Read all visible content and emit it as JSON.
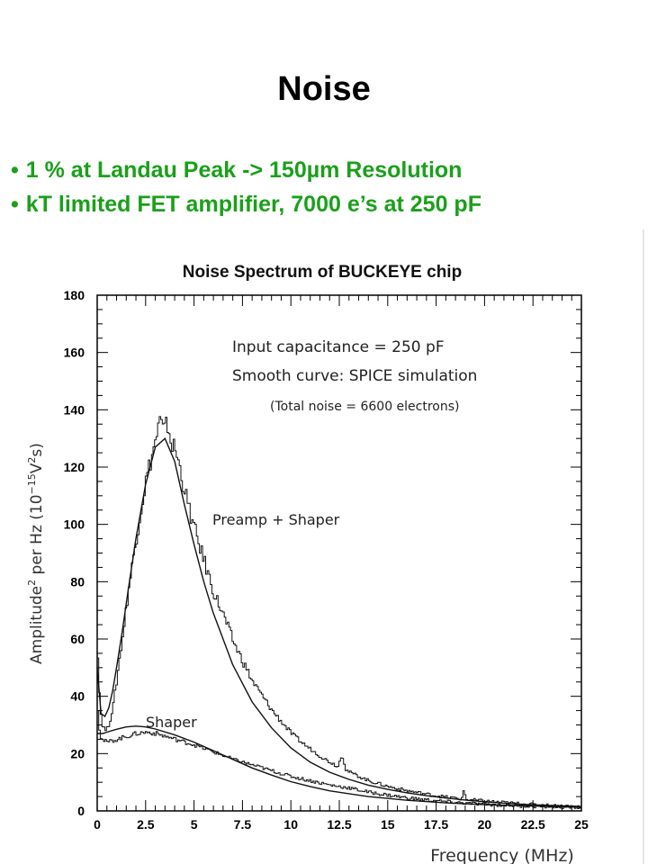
{
  "slide": {
    "title": "Noise",
    "bullets": [
      "1 % at Landau Peak -> 150µm  Resolution",
      "kT limited FET amplifier, 7000 e’s at 250 pF"
    ],
    "bullet_color": "#1aa01a"
  },
  "chart_data": {
    "type": "line",
    "title": "Noise Spectrum of BUCKEYE chip",
    "xlabel": "Frequency (MHz)",
    "ylabel_parts": [
      "Amplitude",
      "2",
      " per Hz  (10",
      "−15",
      "V",
      "2",
      "s)"
    ],
    "xlim": [
      0,
      25
    ],
    "ylim": [
      0,
      180
    ],
    "xticks": [
      0,
      2.5,
      5,
      7.5,
      10,
      12.5,
      15,
      17.5,
      20,
      22.5,
      25
    ],
    "xtick_labels": [
      "0",
      "2.5",
      "5",
      "7.5",
      "10",
      "12.5",
      "15",
      "17.5",
      "20",
      "22.5",
      "25"
    ],
    "yticks": [
      0,
      20,
      40,
      60,
      80,
      100,
      120,
      140,
      160,
      180
    ],
    "ytick_labels": [
      "0",
      "20",
      "40",
      "60",
      "80",
      "100",
      "120",
      "140",
      "160",
      "180"
    ],
    "annotations": [
      "Input capacitance = 250 pF",
      "Smooth curve: SPICE simulation",
      "(Total noise = 6600 electrons)",
      "Preamp + Shaper",
      "Shaper"
    ],
    "series": [
      {
        "name": "Preamp + Shaper",
        "kind": "smooth",
        "x": [
          0,
          0.2,
          0.4,
          0.6,
          0.8,
          1.0,
          1.3,
          1.6,
          2.0,
          2.5,
          3.0,
          3.5,
          4.0,
          4.5,
          5.0,
          5.5,
          6.0,
          7.0,
          8.0,
          9.0,
          10.0,
          11.0,
          12.0,
          13.0,
          14.0,
          15.0,
          16.0,
          17.0,
          18.0,
          19.0,
          20.0,
          21.0,
          22.0,
          23.0,
          24.0,
          25.0
        ],
        "y": [
          50,
          34,
          33,
          36,
          42,
          50,
          63,
          77,
          95,
          114,
          127,
          130,
          122,
          107,
          93,
          80,
          69,
          51,
          38,
          29,
          22,
          17,
          13.5,
          11,
          9,
          7.5,
          6.3,
          5.3,
          4.5,
          3.8,
          3.2,
          2.7,
          2.3,
          2.0,
          1.7,
          1.5
        ]
      },
      {
        "name": "Preamp + Shaper",
        "kind": "measured",
        "x": [
          0,
          0.1,
          0.2,
          0.3,
          0.45,
          0.6,
          0.8,
          1.0,
          1.3,
          1.6,
          2.0,
          2.5,
          3.0,
          3.2,
          3.4,
          3.6,
          3.8,
          4.0,
          4.3,
          4.6,
          5.0,
          5.5,
          6.0,
          6.5,
          7.0,
          7.5,
          8.0,
          8.5,
          9.0,
          9.5,
          10.0,
          10.5,
          11.0,
          11.5,
          12.0,
          12.4,
          12.6,
          12.8,
          13.0,
          13.5,
          14.0,
          15.0,
          16.0,
          17.0,
          18.0,
          18.8,
          18.9,
          19.0,
          20.0,
          21.0,
          22.0,
          23.0,
          24.0,
          25.0
        ],
        "y": [
          55,
          38,
          31,
          29,
          28,
          31,
          37,
          47,
          62,
          78,
          96,
          116,
          130,
          136,
          132,
          135,
          128,
          126,
          118,
          108,
          98,
          87,
          76,
          68,
          59,
          52,
          45,
          40,
          35,
          31,
          27,
          24,
          21.5,
          19,
          17,
          15.5,
          20,
          14.5,
          13.5,
          12,
          10.5,
          8.5,
          7,
          5.8,
          4.8,
          4.2,
          8,
          4,
          3.4,
          2.9,
          2.4,
          2.0,
          1.7,
          1.5
        ]
      },
      {
        "name": "Shaper",
        "kind": "smooth",
        "x": [
          0,
          0.3,
          0.5,
          1.0,
          1.5,
          2.0,
          2.5,
          3.0,
          4.0,
          5.0,
          6.0,
          7.0,
          8.0,
          9.0,
          10.0,
          11.0,
          12.0,
          14.0,
          16.0,
          18.0,
          20.0,
          22.0,
          25.0
        ],
        "y": [
          27,
          27,
          27.5,
          28.5,
          29.3,
          29.6,
          29.3,
          28.6,
          26.5,
          24,
          21,
          18,
          15,
          12.5,
          10.2,
          8.5,
          7,
          5,
          3.7,
          2.8,
          2.2,
          1.8,
          1.3
        ]
      },
      {
        "name": "Shaper",
        "kind": "measured",
        "x": [
          0,
          0.1,
          0.2,
          0.3,
          0.5,
          1.0,
          1.5,
          2.0,
          2.5,
          3.0,
          3.5,
          4.0,
          5.0,
          6.0,
          7.0,
          8.0,
          9.0,
          10.0,
          11.0,
          12.0,
          13.0,
          14.0,
          15.0,
          16.0,
          17.0,
          18.0,
          19.0,
          20.0,
          22.0,
          25.0
        ],
        "y": [
          36,
          27,
          25,
          24.5,
          24,
          25,
          26,
          27,
          27.5,
          27,
          26,
          25,
          23,
          20.5,
          18,
          16,
          14,
          12,
          10.5,
          9,
          8,
          6.5,
          5.5,
          4.5,
          3.8,
          3.2,
          2.7,
          2.3,
          1.7,
          1.2
        ]
      }
    ]
  }
}
